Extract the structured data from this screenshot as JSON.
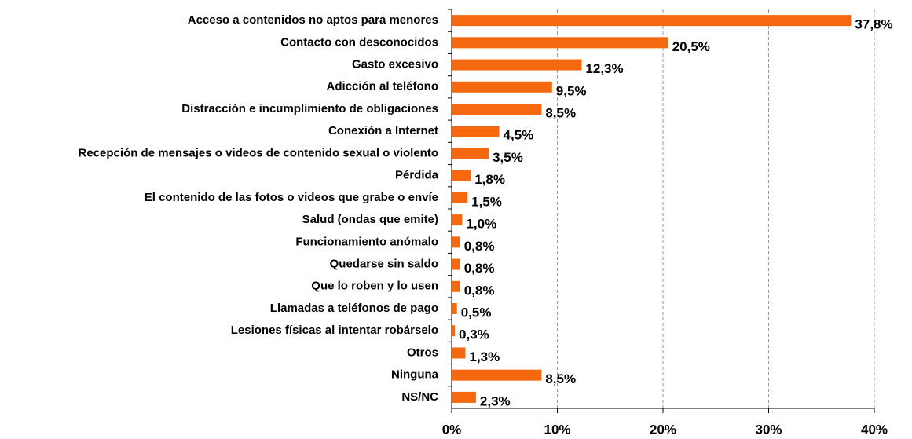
{
  "chart_data": {
    "type": "bar",
    "orientation": "horizontal",
    "categories": [
      "Acceso a contenidos no aptos para menores",
      "Contacto con desconocidos",
      "Gasto excesivo",
      "Adicción al teléfono",
      "Distracción e incumplimiento de obligaciones",
      "Conexión a Internet",
      "Recepción de mensajes o videos de contenido sexual o violento",
      "Pérdida",
      "El contenido de las fotos o videos que grabe o envíe",
      "Salud (ondas que emite)",
      "Funcionamiento anómalo",
      "Quedarse sin saldo",
      "Que lo roben y lo usen",
      "Llamadas a teléfonos de pago",
      "Lesiones físicas al intentar robárselo",
      "Otros",
      "Ninguna",
      "NS/NC"
    ],
    "values": [
      37.8,
      20.5,
      12.3,
      9.5,
      8.5,
      4.5,
      3.5,
      1.8,
      1.5,
      1.0,
      0.8,
      0.8,
      0.8,
      0.5,
      0.3,
      1.3,
      8.5,
      2.3
    ],
    "value_labels": [
      "37,8%",
      "20,5%",
      "12,3%",
      "9,5%",
      "8,5%",
      "4,5%",
      "3,5%",
      "1,8%",
      "1,5%",
      "1,0%",
      "0,8%",
      "0,8%",
      "0,8%",
      "0,5%",
      "0,3%",
      "1,3%",
      "8,5%",
      "2,3%"
    ],
    "color": "#f5680f",
    "xlim": [
      0,
      40
    ],
    "xticks": [
      {
        "value": 0,
        "label": "0%"
      },
      {
        "value": 10,
        "label": "10%"
      },
      {
        "value": 20,
        "label": "20%"
      },
      {
        "value": 30,
        "label": "30%"
      },
      {
        "value": 40,
        "label": "40%"
      }
    ],
    "grid": true
  }
}
